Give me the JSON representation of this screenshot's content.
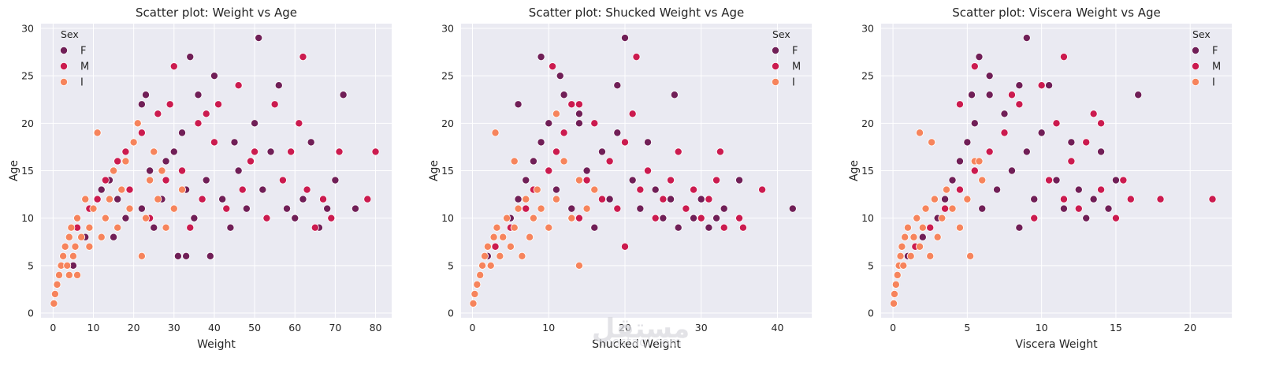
{
  "colors": {
    "background": "#eaeaf2",
    "grid": "#ffffff",
    "F": "#701f57",
    "M": "#cb1b4f",
    "I": "#f6845c"
  },
  "watermark": {
    "main": "مستقل",
    "sub": "mostaql.com"
  },
  "chart_data": [
    {
      "type": "scatter",
      "title": "Scatter plot: Weight vs Age",
      "xlabel": "Weight",
      "ylabel": "Age",
      "xlim": [
        -3,
        84
      ],
      "ylim": [
        -0.5,
        30.5
      ],
      "xticks": [
        0,
        10,
        20,
        30,
        40,
        50,
        60,
        70,
        80
      ],
      "yticks": [
        0,
        5,
        10,
        15,
        20,
        25,
        30
      ],
      "grid": true,
      "legend": {
        "title": "Sex",
        "placement": "top-left",
        "entries": [
          "F",
          "M",
          "I"
        ]
      },
      "series": [
        {
          "name": "F",
          "x": [
            5,
            8,
            10,
            12,
            14,
            15,
            16,
            18,
            20,
            21,
            22,
            23,
            24,
            25,
            26,
            27,
            28,
            30,
            31,
            32,
            33,
            34,
            35,
            36,
            38,
            40,
            42,
            44,
            45,
            46,
            48,
            50,
            51,
            52,
            54,
            56,
            58,
            60,
            62,
            64,
            66,
            68,
            70,
            72,
            75,
            39,
            51,
            56,
            72,
            34,
            22,
            33
          ],
          "y": [
            5,
            8,
            11,
            13,
            14,
            8,
            12,
            10,
            18,
            20,
            11,
            23,
            15,
            9,
            21,
            12,
            16,
            17,
            6,
            19,
            13,
            27,
            10,
            23,
            14,
            25,
            12,
            9,
            18,
            15,
            11,
            20,
            29,
            13,
            17,
            24,
            11,
            10,
            12,
            18,
            9,
            11,
            14,
            23,
            11,
            6,
            29,
            24,
            23,
            27,
            22,
            6
          ]
        },
        {
          "name": "M",
          "x": [
            3,
            6,
            9,
            11,
            13,
            16,
            18,
            19,
            22,
            24,
            26,
            28,
            29,
            30,
            32,
            34,
            36,
            37,
            40,
            41,
            43,
            46,
            47,
            49,
            53,
            55,
            57,
            59,
            61,
            62,
            63,
            65,
            67,
            69,
            71,
            78,
            80,
            30,
            46,
            62,
            50,
            38
          ],
          "y": [
            7,
            9,
            11,
            12,
            14,
            16,
            17,
            13,
            19,
            10,
            21,
            14,
            22,
            26,
            15,
            9,
            20,
            12,
            18,
            22,
            11,
            24,
            13,
            16,
            10,
            22,
            14,
            17,
            20,
            27,
            13,
            9,
            12,
            10,
            17,
            12,
            17,
            26,
            24,
            27,
            17,
            21
          ]
        },
        {
          "name": "I",
          "x": [
            0.2,
            0.5,
            1,
            1.5,
            2,
            2.5,
            3,
            3.5,
            4,
            4.5,
            5,
            5.5,
            6,
            7,
            8,
            9,
            10,
            11,
            12,
            13,
            14,
            15,
            16,
            17,
            18,
            19,
            20,
            21,
            22,
            23,
            24,
            25,
            26,
            27,
            28,
            30,
            32,
            11,
            9,
            6,
            4
          ],
          "y": [
            1,
            2,
            3,
            4,
            5,
            6,
            7,
            5,
            8,
            9,
            6,
            7,
            10,
            8,
            12,
            9,
            11,
            19,
            8,
            10,
            12,
            15,
            9,
            13,
            16,
            11,
            18,
            20,
            6,
            10,
            14,
            17,
            12,
            15,
            9,
            11,
            13,
            19,
            7,
            4,
            4
          ]
        }
      ]
    },
    {
      "type": "scatter",
      "title": "Scatter plot: Shucked Weight vs Age",
      "xlabel": "Shucked Weight",
      "ylabel": "Age",
      "xlim": [
        -1.5,
        44.5
      ],
      "ylim": [
        -0.5,
        30.5
      ],
      "xticks": [
        0,
        10,
        20,
        30,
        40
      ],
      "yticks": [
        0,
        5,
        10,
        15,
        20,
        25,
        30
      ],
      "grid": true,
      "legend": {
        "title": "Sex",
        "placement": "top-right",
        "entries": [
          "F",
          "M",
          "I"
        ]
      },
      "series": [
        {
          "name": "F",
          "x": [
            2,
            4,
            5,
            6,
            7,
            8,
            9,
            10,
            11,
            12,
            13,
            14,
            15,
            16,
            17,
            18,
            19,
            20,
            21,
            22,
            23,
            24,
            25,
            26,
            27,
            28,
            29,
            30,
            31,
            32,
            33,
            35,
            42,
            9,
            11.5,
            20,
            19,
            26.5,
            6,
            14
          ],
          "y": [
            6,
            8,
            10,
            12,
            14,
            16,
            18,
            20,
            13,
            23,
            11,
            21,
            15,
            9,
            17,
            12,
            19,
            29,
            14,
            11,
            18,
            13,
            10,
            12,
            9,
            11,
            10,
            12,
            9,
            10,
            11,
            14,
            11,
            27,
            25,
            29,
            24,
            23,
            22,
            20
          ]
        },
        {
          "name": "M",
          "x": [
            3,
            5,
            7,
            8,
            10,
            11,
            12,
            13,
            14,
            15,
            16,
            17,
            18,
            19,
            20,
            21,
            22,
            23,
            24,
            25,
            26,
            27,
            28,
            29,
            30,
            31,
            32,
            33,
            35,
            38,
            10.5,
            21.5,
            32.5,
            20,
            14,
            35.5
          ],
          "y": [
            7,
            9,
            11,
            13,
            15,
            17,
            19,
            22,
            10,
            14,
            20,
            12,
            16,
            11,
            18,
            21,
            13,
            15,
            10,
            12,
            14,
            17,
            11,
            13,
            10,
            12,
            14,
            9,
            10,
            13,
            26,
            27,
            17,
            7,
            22,
            9
          ]
        },
        {
          "name": "I",
          "x": [
            0.1,
            0.3,
            0.6,
            1,
            1.3,
            1.6,
            2,
            2.4,
            2.8,
            3.2,
            3.6,
            4,
            4.5,
            5,
            5.5,
            6,
            6.5,
            7,
            7.5,
            8,
            8.5,
            9,
            10,
            11,
            12,
            13,
            14,
            15,
            16,
            3,
            5.5,
            11,
            14
          ],
          "y": [
            1,
            2,
            3,
            4,
            5,
            6,
            7,
            5,
            8,
            9,
            6,
            8,
            10,
            7,
            9,
            11,
            6,
            12,
            8,
            10,
            13,
            11,
            9,
            12,
            16,
            10,
            14,
            11,
            13,
            19,
            16,
            21,
            5
          ]
        }
      ]
    },
    {
      "type": "scatter",
      "title": "Scatter plot: Viscera Weight vs Age",
      "xlabel": "Viscera Weight",
      "ylabel": "Age",
      "xlim": [
        -0.8,
        22.8
      ],
      "ylim": [
        -0.5,
        30.5
      ],
      "xticks": [
        0,
        5,
        10,
        15,
        20
      ],
      "yticks": [
        0,
        5,
        10,
        15,
        20,
        25,
        30
      ],
      "grid": true,
      "legend": {
        "title": "Sex",
        "placement": "top-right",
        "entries": [
          "F",
          "M",
          "I"
        ]
      },
      "series": [
        {
          "name": "F",
          "x": [
            1,
            2,
            3,
            3.5,
            4,
            4.5,
            5,
            5.5,
            6,
            6.5,
            7,
            7.5,
            8,
            8.5,
            9,
            9.5,
            10,
            10.5,
            11,
            11.5,
            12,
            12.5,
            13,
            13.5,
            14,
            14.5,
            15,
            9,
            5.8,
            6.5,
            8.5,
            16.5,
            5.3
          ],
          "y": [
            6,
            8,
            10,
            12,
            14,
            16,
            18,
            20,
            11,
            23,
            13,
            21,
            15,
            9,
            17,
            12,
            19,
            24,
            14,
            11,
            18,
            13,
            10,
            12,
            17,
            11,
            14,
            29,
            27,
            25,
            24,
            23,
            23
          ]
        },
        {
          "name": "M",
          "x": [
            1.5,
            2.5,
            3.5,
            4.5,
            5.5,
            6.5,
            7.5,
            8.5,
            9.5,
            10.5,
            11,
            11.5,
            12,
            12.5,
            13,
            13.5,
            14,
            15,
            15.5,
            16,
            18,
            21.5,
            5.5,
            10,
            11.5,
            14,
            4.5,
            8
          ],
          "y": [
            7,
            9,
            11,
            13,
            15,
            17,
            19,
            22,
            10,
            14,
            20,
            12,
            16,
            11,
            18,
            21,
            13,
            10,
            14,
            12,
            12,
            12,
            26,
            24,
            27,
            20,
            22,
            23
          ]
        },
        {
          "name": "I",
          "x": [
            0.05,
            0.1,
            0.2,
            0.3,
            0.4,
            0.5,
            0.6,
            0.7,
            0.8,
            1,
            1.2,
            1.4,
            1.6,
            1.8,
            2,
            2.2,
            2.5,
            2.8,
            3,
            3.3,
            3.6,
            4,
            4.5,
            5,
            5.5,
            6,
            1.8,
            2.6,
            5.2,
            5.8
          ],
          "y": [
            1,
            2,
            3,
            4,
            5,
            6,
            7,
            5,
            8,
            9,
            6,
            8,
            10,
            7,
            9,
            11,
            6,
            12,
            8,
            10,
            13,
            11,
            9,
            12,
            16,
            14,
            19,
            18,
            6,
            16
          ]
        }
      ]
    }
  ]
}
